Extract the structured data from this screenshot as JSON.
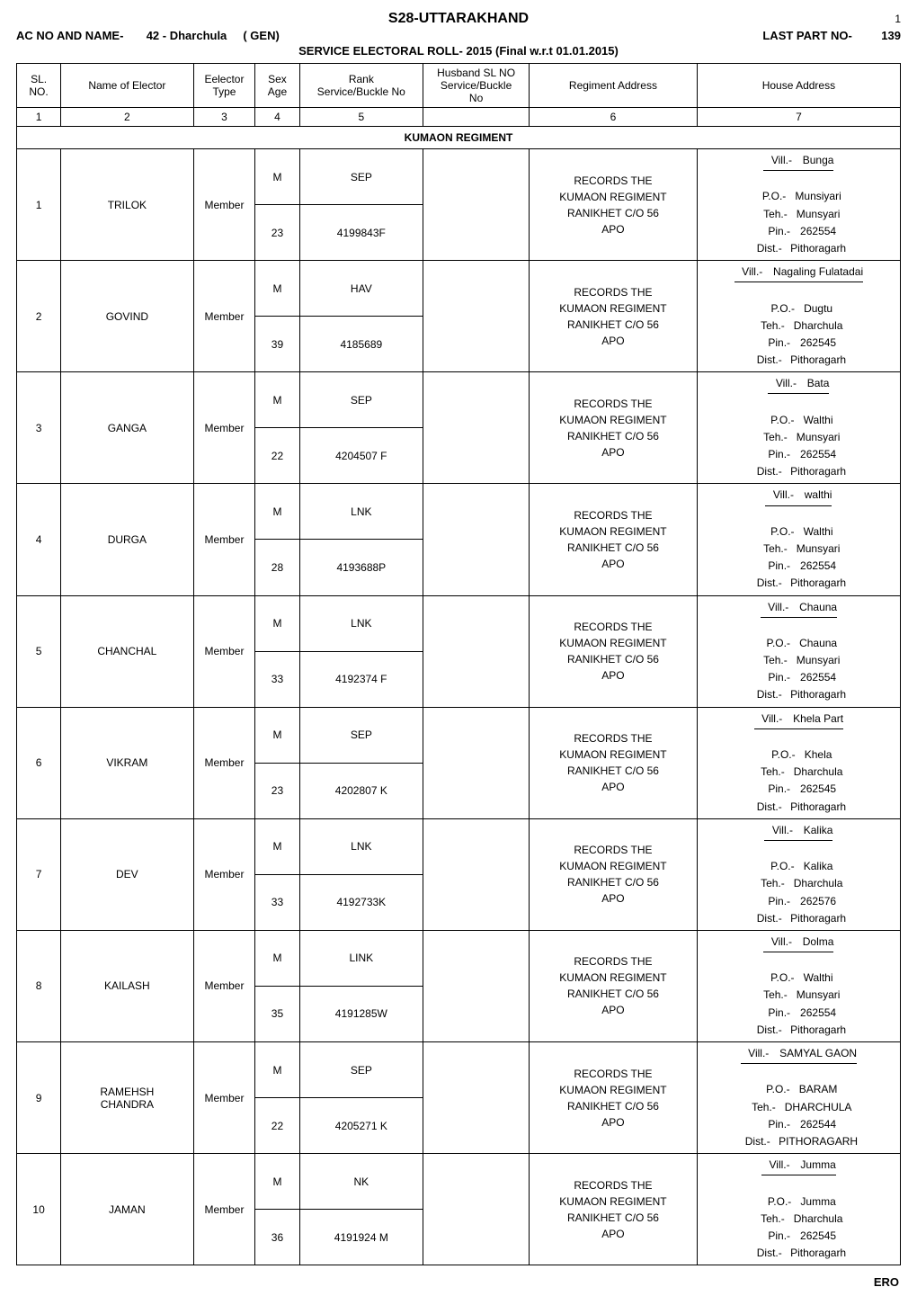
{
  "header": {
    "title": "S28-UTTARAKHAND",
    "page_no": "1",
    "ac_label": "AC NO AND NAME-",
    "ac_value": "42 - Dharchula",
    "ac_gen": "( GEN)",
    "last_part_label": "LAST PART NO-",
    "last_part_value": "139",
    "service_line": "SERVICE ELECTORAL ROLL- 2015 (Final w.r.t 01.01.2015)"
  },
  "columns": {
    "sl": "SL.\nNO.",
    "name": "Name of Elector",
    "type": "Eelector\nType",
    "sex": "Sex\nAge",
    "rank": "Rank\nService/Buckle No",
    "husband": "Husband SL NO\nService/Buckle\nNo",
    "regiment": "Regiment Address",
    "house": "House Address"
  },
  "col_idx": {
    "sl": "1",
    "name": "2",
    "type": "3",
    "sex": "4",
    "rank": "5",
    "husband": "",
    "regiment": "6",
    "house": "7"
  },
  "regiment_heading": "KUMAON REGIMENT",
  "default_regiment": "RECORDS THE KUMAON REGIMENT RANIKHET C/O 56 APO",
  "addr_labels": {
    "vill": "Vill.-",
    "po": "P.O.-",
    "teh": "Teh.-",
    "pin": "Pin.-",
    "dist": "Dist.-"
  },
  "footer": {
    "ero": "ERO"
  },
  "rows": [
    {
      "sl": "1",
      "name": "TRILOK",
      "type": "Member",
      "sex": "M",
      "age": "23",
      "rank": "SEP",
      "buckle": "4199843F",
      "vill": "Bunga",
      "po": "Munsiyari",
      "teh": "Munsyari",
      "pin": "262554",
      "dist": "Pithoragarh"
    },
    {
      "sl": "2",
      "name": "GOVIND",
      "type": "Member",
      "sex": "M",
      "age": "39",
      "rank": "HAV",
      "buckle": "4185689",
      "vill": "Nagaling Fulatadai",
      "po": "Dugtu",
      "teh": "Dharchula",
      "pin": "262545",
      "dist": "Pithoragarh"
    },
    {
      "sl": "3",
      "name": "GANGA",
      "type": "Member",
      "sex": "M",
      "age": "22",
      "rank": "SEP",
      "buckle": "4204507 F",
      "vill": "Bata",
      "po": "Walthi",
      "teh": "Munsyari",
      "pin": "262554",
      "dist": "Pithoragarh"
    },
    {
      "sl": "4",
      "name": "DURGA",
      "type": "Member",
      "sex": "M",
      "age": "28",
      "rank": "LNK",
      "buckle": "4193688P",
      "vill": "walthi",
      "po": "Walthi",
      "teh": "Munsyari",
      "pin": "262554",
      "dist": "Pithoragarh"
    },
    {
      "sl": "5",
      "name": "CHANCHAL",
      "type": "Member",
      "sex": "M",
      "age": "33",
      "rank": "LNK",
      "buckle": "4192374 F",
      "vill": "Chauna",
      "po": "Chauna",
      "teh": "Munsyari",
      "pin": "262554",
      "dist": "Pithoragarh"
    },
    {
      "sl": "6",
      "name": "VIKRAM",
      "type": "Member",
      "sex": "M",
      "age": "23",
      "rank": "SEP",
      "buckle": "4202807 K",
      "vill": "Khela Part",
      "po": "Khela",
      "teh": "Dharchula",
      "pin": "262545",
      "dist": "Pithoragarh"
    },
    {
      "sl": "7",
      "name": "DEV",
      "type": "Member",
      "sex": "M",
      "age": "33",
      "rank": "LNK",
      "buckle": "4192733K",
      "vill": "Kalika",
      "po": "Kalika",
      "teh": "Dharchula",
      "pin": "262576",
      "dist": "Pithoragarh"
    },
    {
      "sl": "8",
      "name": "KAILASH",
      "type": "Member",
      "sex": "M",
      "age": "35",
      "rank": "LINK",
      "buckle": "4191285W",
      "vill": "Dolma",
      "po": "Walthi",
      "teh": "Munsyari",
      "pin": "262554",
      "dist": "Pithoragarh"
    },
    {
      "sl": "9",
      "name": "RAMEHSH\nCHANDRA",
      "type": "Member",
      "sex": "M",
      "age": "22",
      "rank": "SEP",
      "buckle": "4205271 K",
      "vill": "SAMYAL GAON",
      "po": "BARAM",
      "teh": "DHARCHULA",
      "pin": "262544",
      "dist": "PITHORAGARH"
    },
    {
      "sl": "10",
      "name": "JAMAN",
      "type": "Member",
      "sex": "M",
      "age": "36",
      "rank": "NK",
      "buckle": "4191924 M",
      "vill": "Jumma",
      "po": "Jumma",
      "teh": "Dharchula",
      "pin": "262545",
      "dist": "Pithoragarh"
    }
  ]
}
